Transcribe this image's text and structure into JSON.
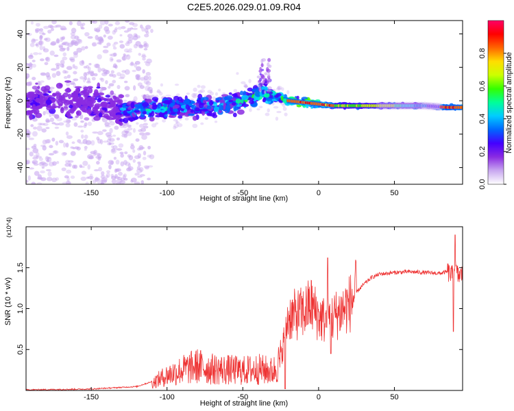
{
  "title": "C2E5.2026.029.01.09.R04",
  "chart_data": [
    {
      "type": "heatmap",
      "title": "C2E5.2026.029.01.09.R04",
      "xlabel": "Height of straight line (km)",
      "ylabel": "Frequency (Hz)",
      "xlim": [
        -193,
        95
      ],
      "ylim": [
        -50,
        48
      ],
      "xticks": [
        -150,
        -100,
        -50,
        0,
        50
      ],
      "yticks": [
        -40,
        -20,
        0,
        20,
        40
      ],
      "colorbar": {
        "label": "Normalized spectral amplitude",
        "range": [
          0,
          1
        ],
        "ticks": [
          "0.0",
          "0.2",
          "0.4",
          "0.6",
          "0.8"
        ],
        "colors": [
          "#ffffff",
          "#c9a8f0",
          "#8a2be2",
          "#4400ff",
          "#0066ff",
          "#00ccff",
          "#00ff99",
          "#33ff00",
          "#ccff00",
          "#ffdd00",
          "#ff6600",
          "#ff0000",
          "#ff0066"
        ]
      },
      "ridge": [
        [
          -190,
          0
        ],
        [
          -150,
          0
        ],
        [
          -130,
          -6
        ],
        [
          -110,
          -5
        ],
        [
          -90,
          -4
        ],
        [
          -70,
          -3
        ],
        [
          -50,
          0
        ],
        [
          -38,
          5
        ],
        [
          -30,
          3
        ],
        [
          -20,
          0
        ],
        [
          -10,
          -1
        ],
        [
          0,
          -2
        ],
        [
          10,
          -3
        ],
        [
          30,
          -3
        ],
        [
          50,
          -3
        ],
        [
          70,
          -3
        ],
        [
          85,
          -4
        ],
        [
          95,
          -4
        ]
      ]
    },
    {
      "type": "line",
      "xlabel": "Height of straight line (km)",
      "ylabel": "SNR (10 * v/v)",
      "yscale_label": "(x10^4)",
      "xlim": [
        -193,
        95
      ],
      "ylim": [
        0,
        2.0
      ],
      "xticks": [
        -150,
        -100,
        -50,
        0,
        50
      ],
      "yticks": [
        "0.5",
        "1.0",
        "1.5"
      ],
      "color": "#ee3333",
      "envelope": [
        [
          -193,
          0.0
        ],
        [
          -150,
          0.01
        ],
        [
          -120,
          0.04
        ],
        [
          -110,
          0.1
        ],
        [
          -100,
          0.2
        ],
        [
          -90,
          0.27
        ],
        [
          -80,
          0.32
        ],
        [
          -70,
          0.28
        ],
        [
          -60,
          0.27
        ],
        [
          -50,
          0.26
        ],
        [
          -40,
          0.28
        ],
        [
          -30,
          0.25
        ],
        [
          -25,
          0.4
        ],
        [
          -20,
          0.9
        ],
        [
          -10,
          0.95
        ],
        [
          -5,
          1.05
        ],
        [
          0,
          0.9
        ],
        [
          5,
          0.85
        ],
        [
          10,
          0.9
        ],
        [
          20,
          1.05
        ],
        [
          25,
          1.2
        ],
        [
          30,
          1.3
        ],
        [
          35,
          1.38
        ],
        [
          40,
          1.42
        ],
        [
          50,
          1.44
        ],
        [
          60,
          1.45
        ],
        [
          70,
          1.44
        ],
        [
          80,
          1.43
        ],
        [
          85,
          1.45
        ],
        [
          88,
          1.4
        ],
        [
          90,
          1.5
        ],
        [
          92,
          1.4
        ],
        [
          95,
          1.42
        ]
      ]
    }
  ]
}
